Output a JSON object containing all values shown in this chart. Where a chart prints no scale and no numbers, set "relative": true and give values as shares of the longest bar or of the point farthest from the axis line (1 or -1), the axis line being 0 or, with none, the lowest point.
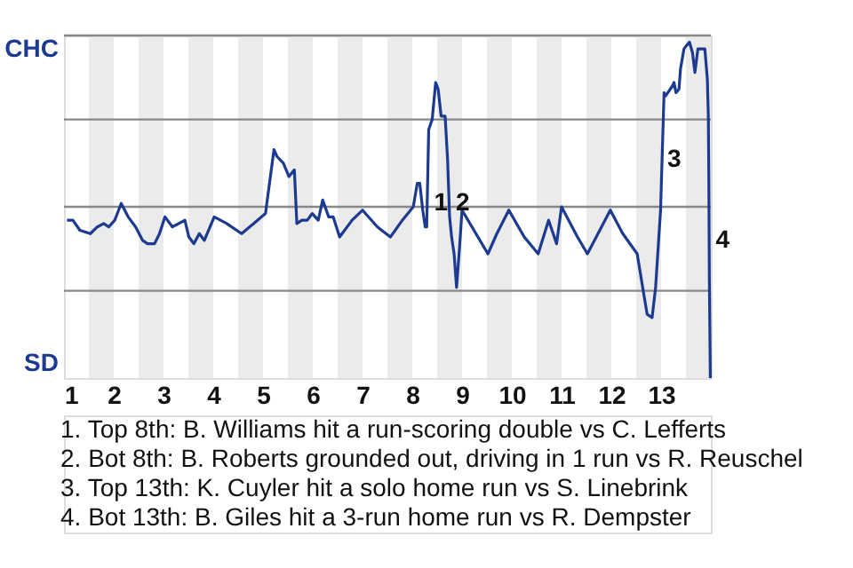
{
  "chart_data": {
    "type": "line",
    "relative": true,
    "x": [
      1.06,
      1.18,
      1.32,
      1.53,
      1.67,
      1.8,
      1.9,
      2.02,
      2.15,
      2.29,
      2.44,
      2.58,
      2.68,
      2.82,
      2.92,
      3.03,
      3.18,
      3.43,
      3.51,
      3.61,
      3.72,
      3.82,
      4.02,
      4.27,
      4.57,
      4.81,
      5.05,
      5.22,
      5.28,
      5.41,
      5.52,
      5.63,
      5.68,
      5.78,
      5.89,
      5.99,
      6.11,
      6.2,
      6.32,
      6.41,
      6.54,
      6.79,
      7.0,
      7.3,
      7.56,
      7.8,
      8.02,
      8.1,
      8.15,
      8.21,
      8.26,
      8.29,
      8.33,
      8.4,
      8.47,
      8.52,
      8.58,
      8.66,
      8.71,
      8.75,
      8.79,
      8.84,
      8.89,
      8.95,
      9.0,
      9.52,
      9.7,
      9.94,
      10.25,
      10.53,
      10.74,
      10.9,
      11.0,
      11.32,
      11.52,
      11.98,
      12.23,
      12.52,
      12.63,
      12.72,
      12.82,
      12.89,
      12.99,
      13.06,
      13.09,
      13.23,
      13.26,
      13.3,
      13.36,
      13.39,
      13.46,
      13.51,
      13.57,
      13.63,
      13.68,
      13.74,
      13.81,
      13.88,
      13.93,
      13.95,
      13.96,
      13.97,
      13.99
    ],
    "series": [
      {
        "color": "#1c3a8f",
        "values": [
          0.47,
          0.47,
          0.44,
          0.43,
          0.45,
          0.46,
          0.45,
          0.47,
          0.52,
          0.48,
          0.45,
          0.41,
          0.4,
          0.4,
          0.43,
          0.48,
          0.45,
          0.47,
          0.42,
          0.4,
          0.43,
          0.41,
          0.48,
          0.46,
          0.43,
          0.46,
          0.49,
          0.68,
          0.66,
          0.64,
          0.6,
          0.62,
          0.46,
          0.47,
          0.47,
          0.49,
          0.47,
          0.53,
          0.48,
          0.48,
          0.42,
          0.47,
          0.5,
          0.45,
          0.42,
          0.47,
          0.51,
          0.58,
          0.58,
          0.5,
          0.45,
          0.45,
          0.74,
          0.77,
          0.88,
          0.86,
          0.78,
          0.78,
          0.65,
          0.48,
          0.42,
          0.37,
          0.27,
          0.39,
          0.5,
          0.37,
          0.43,
          0.5,
          0.42,
          0.37,
          0.47,
          0.4,
          0.51,
          0.42,
          0.37,
          0.5,
          0.43,
          0.37,
          0.27,
          0.19,
          0.18,
          0.27,
          0.5,
          0.85,
          0.84,
          0.87,
          0.88,
          0.85,
          0.86,
          0.92,
          0.98,
          0.99,
          1,
          0.97,
          0.91,
          0.98,
          0.98,
          0.98,
          0.89,
          0.78,
          0.59,
          0.3,
          0
        ]
      }
    ],
    "xlim": [
      1,
      14
    ],
    "xticks": [
      1,
      2,
      3,
      4,
      5,
      6,
      7,
      8,
      9,
      10,
      11,
      12,
      13
    ],
    "ref_lines": [
      {
        "axis": "y",
        "value": 0.26,
        "color": "#888888"
      },
      {
        "axis": "y",
        "value": 0.51,
        "color": "#888888"
      },
      {
        "axis": "y",
        "value": 0.77,
        "color": "#888888"
      },
      {
        "axis": "y",
        "value": 1.02,
        "color": "#888888"
      }
    ],
    "bands": [
      {
        "axis": "x",
        "from": 1.5,
        "to": 2,
        "color": "#ebebeb"
      },
      {
        "axis": "x",
        "from": 2.5,
        "to": 3,
        "color": "#ebebeb"
      },
      {
        "axis": "x",
        "from": 3.5,
        "to": 4,
        "color": "#ebebeb"
      },
      {
        "axis": "x",
        "from": 4.5,
        "to": 5,
        "color": "#ebebeb"
      },
      {
        "axis": "x",
        "from": 5.5,
        "to": 6,
        "color": "#ebebeb"
      },
      {
        "axis": "x",
        "from": 6.5,
        "to": 7,
        "color": "#ebebeb"
      },
      {
        "axis": "x",
        "from": 7.5,
        "to": 8,
        "color": "#ebebeb"
      },
      {
        "axis": "x",
        "from": 8.5,
        "to": 9,
        "color": "#ebebeb"
      },
      {
        "axis": "x",
        "from": 9.5,
        "to": 10,
        "color": "#ebebeb"
      },
      {
        "axis": "x",
        "from": 10.5,
        "to": 11,
        "color": "#ebebeb"
      },
      {
        "axis": "x",
        "from": 11.5,
        "to": 12,
        "color": "#ebebeb"
      },
      {
        "axis": "x",
        "from": 12.5,
        "to": 13,
        "color": "#ebebeb"
      },
      {
        "axis": "x",
        "from": 13.5,
        "to": 14,
        "color": "#ebebeb"
      }
    ],
    "annotations": [
      "CHC",
      "SD",
      {
        "text": "1",
        "x": 8.33,
        "y": 0.52
      },
      {
        "text": "2",
        "x": 8.77,
        "y": 0.52
      },
      {
        "text": "3",
        "x": 13.02,
        "y": 0.65
      },
      {
        "text": "4",
        "x": 13.99,
        "y": 0.41
      },
      "1. Top 8th: B. Williams hit a run-scoring double vs C. Lefferts",
      "2. Bot 8th: B. Roberts grounded out, driving in 1 run vs R. Reuschel",
      "3. Top 13th: K. Cuyler hit a solo home run vs S. Linebrink",
      "4. Bot 13th: B. Giles hit a 3-run home run vs R. Dempster"
    ]
  }
}
